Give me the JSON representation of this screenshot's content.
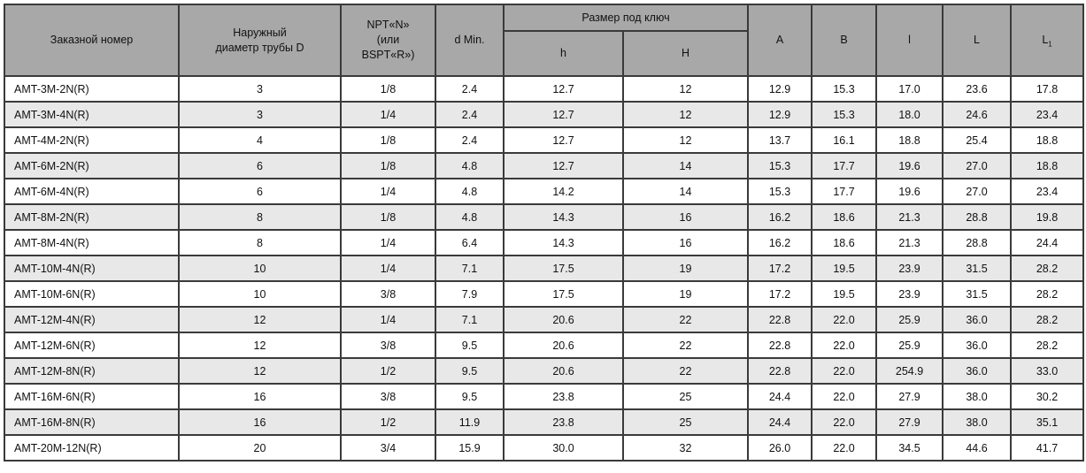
{
  "colors": {
    "header_bg": "#a8a8a8",
    "row_alt_bg": "#e8e8e8",
    "border": "#3a3a3a"
  },
  "table": {
    "header": {
      "order_number": "Заказной номер",
      "outer_diameter": "Наружный\nдиаметр трубы D",
      "thread": "NPT«N»\n(или\nBSPT«R»)",
      "d_min": "d Min.",
      "wrench_size": "Размер под ключ",
      "h_small": "h",
      "h_big": "H",
      "a": "A",
      "b": "B",
      "l_small": "l",
      "l_big": "L",
      "l1_base": "L",
      "l1_sub": "1"
    },
    "rows": [
      [
        "AMT-3M-2N(R)",
        "3",
        "1/8",
        "2.4",
        "12.7",
        "12",
        "12.9",
        "15.3",
        "17.0",
        "23.6",
        "17.8"
      ],
      [
        "AMT-3M-4N(R)",
        "3",
        "1/4",
        "2.4",
        "12.7",
        "12",
        "12.9",
        "15.3",
        "18.0",
        "24.6",
        "23.4"
      ],
      [
        "AMT-4M-2N(R)",
        "4",
        "1/8",
        "2.4",
        "12.7",
        "12",
        "13.7",
        "16.1",
        "18.8",
        "25.4",
        "18.8"
      ],
      [
        "AMT-6M-2N(R)",
        "6",
        "1/8",
        "4.8",
        "12.7",
        "14",
        "15.3",
        "17.7",
        "19.6",
        "27.0",
        "18.8"
      ],
      [
        "AMT-6M-4N(R)",
        "6",
        "1/4",
        "4.8",
        "14.2",
        "14",
        "15.3",
        "17.7",
        "19.6",
        "27.0",
        "23.4"
      ],
      [
        "AMT-8M-2N(R)",
        "8",
        "1/8",
        "4.8",
        "14.3",
        "16",
        "16.2",
        "18.6",
        "21.3",
        "28.8",
        "19.8"
      ],
      [
        "AMT-8M-4N(R)",
        "8",
        "1/4",
        "6.4",
        "14.3",
        "16",
        "16.2",
        "18.6",
        "21.3",
        "28.8",
        "24.4"
      ],
      [
        "AMT-10M-4N(R)",
        "10",
        "1/4",
        "7.1",
        "17.5",
        "19",
        "17.2",
        "19.5",
        "23.9",
        "31.5",
        "28.2"
      ],
      [
        "AMT-10M-6N(R)",
        "10",
        "3/8",
        "7.9",
        "17.5",
        "19",
        "17.2",
        "19.5",
        "23.9",
        "31.5",
        "28.2"
      ],
      [
        "AMT-12M-4N(R)",
        "12",
        "1/4",
        "7.1",
        "20.6",
        "22",
        "22.8",
        "22.0",
        "25.9",
        "36.0",
        "28.2"
      ],
      [
        "AMT-12M-6N(R)",
        "12",
        "3/8",
        "9.5",
        "20.6",
        "22",
        "22.8",
        "22.0",
        "25.9",
        "36.0",
        "28.2"
      ],
      [
        "AMT-12M-8N(R)",
        "12",
        "1/2",
        "9.5",
        "20.6",
        "22",
        "22.8",
        "22.0",
        "254.9",
        "36.0",
        "33.0"
      ],
      [
        "AMT-16M-6N(R)",
        "16",
        "3/8",
        "9.5",
        "23.8",
        "25",
        "24.4",
        "22.0",
        "27.9",
        "38.0",
        "30.2"
      ],
      [
        "AMT-16M-8N(R)",
        "16",
        "1/2",
        "11.9",
        "23.8",
        "25",
        "24.4",
        "22.0",
        "27.9",
        "38.0",
        "35.1"
      ],
      [
        "AMT-20M-12N(R)",
        "20",
        "3/4",
        "15.9",
        "30.0",
        "32",
        "26.0",
        "22.0",
        "34.5",
        "44.6",
        "41.7"
      ]
    ]
  }
}
